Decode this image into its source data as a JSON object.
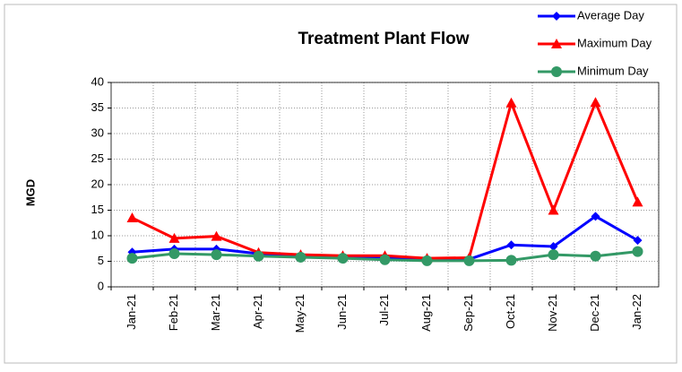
{
  "chart_data": {
    "type": "line",
    "title": "Treatment Plant Flow",
    "y_label": "MGD",
    "categories": [
      "Jan-21",
      "Feb-21",
      "Mar-21",
      "Apr-21",
      "May-21",
      "Jun-21",
      "Jul-21",
      "Aug-21",
      "Sep-21",
      "Oct-21",
      "Nov-21",
      "Dec-21",
      "Jan-22"
    ],
    "series": [
      {
        "name": "Average Day",
        "color": "#0000ff",
        "marker": "diamond",
        "values": [
          6.8,
          7.4,
          7.4,
          6.5,
          6.0,
          5.9,
          5.7,
          5.4,
          5.4,
          8.2,
          7.9,
          13.8,
          9.1
        ]
      },
      {
        "name": "Maximum Day",
        "color": "#ff0000",
        "marker": "triangle",
        "values": [
          13.5,
          9.5,
          9.9,
          6.7,
          6.3,
          6.1,
          6.1,
          5.6,
          5.7,
          36.0,
          15.0,
          36.1,
          16.6
        ]
      },
      {
        "name": "Minimum Day",
        "color": "#339966",
        "marker": "circle",
        "values": [
          5.6,
          6.5,
          6.3,
          6.0,
          5.8,
          5.6,
          5.3,
          5.1,
          5.1,
          5.2,
          6.3,
          6.0,
          6.9
        ]
      }
    ],
    "ylim": [
      0,
      40
    ],
    "yticks": [
      0,
      5,
      10,
      15,
      20,
      25,
      30,
      35,
      40
    ],
    "grid": true,
    "legend": "top-right"
  }
}
